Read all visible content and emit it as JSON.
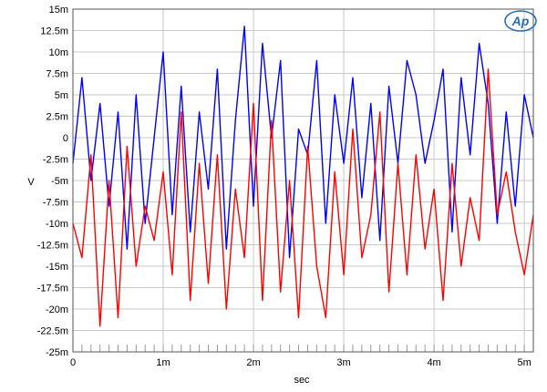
{
  "chart_data": {
    "type": "line",
    "title": "",
    "xlabel": "sec",
    "ylabel": "V",
    "xlim": [
      0,
      0.0051
    ],
    "ylim": [
      -0.025,
      0.015
    ],
    "grid": true,
    "x_ticks": [
      {
        "value": 0,
        "label": "0"
      },
      {
        "value": 0.001,
        "label": "1m"
      },
      {
        "value": 0.002,
        "label": "2m"
      },
      {
        "value": 0.003,
        "label": "3m"
      },
      {
        "value": 0.004,
        "label": "4m"
      },
      {
        "value": 0.005,
        "label": "5m"
      }
    ],
    "y_ticks": [
      {
        "value": 0.015,
        "label": "15m"
      },
      {
        "value": 0.0125,
        "label": "12.5m"
      },
      {
        "value": 0.01,
        "label": "10m"
      },
      {
        "value": 0.0075,
        "label": "7.5m"
      },
      {
        "value": 0.005,
        "label": "5m"
      },
      {
        "value": 0.0025,
        "label": "2.5m"
      },
      {
        "value": 0,
        "label": "0"
      },
      {
        "value": -0.0025,
        "label": "-2.5m"
      },
      {
        "value": -0.005,
        "label": "-5m"
      },
      {
        "value": -0.0075,
        "label": "-7.5m"
      },
      {
        "value": -0.01,
        "label": "-10m"
      },
      {
        "value": -0.0125,
        "label": "-12.5m"
      },
      {
        "value": -0.015,
        "label": "-15m"
      },
      {
        "value": -0.0175,
        "label": "-17.5m"
      },
      {
        "value": -0.02,
        "label": "-20m"
      },
      {
        "value": -0.0225,
        "label": "-22.5m"
      },
      {
        "value": -0.025,
        "label": "-25m"
      }
    ],
    "series": [
      {
        "color": "#0000ff",
        "x": [
          0,
          0.0001,
          0.0002,
          0.0003,
          0.0004,
          0.0005,
          0.0006,
          0.0007,
          0.0008,
          0.0009,
          0.001,
          0.0011,
          0.0012,
          0.0013,
          0.0014,
          0.0015,
          0.0016,
          0.0017,
          0.0018,
          0.0019,
          0.002,
          0.0021,
          0.0022,
          0.0023,
          0.0024,
          0.0025,
          0.0026,
          0.0027,
          0.0028,
          0.0029,
          0.003,
          0.0031,
          0.0032,
          0.0033,
          0.0034,
          0.0035,
          0.0036,
          0.0037,
          0.0038,
          0.0039,
          0.004,
          0.0041,
          0.0042,
          0.0043,
          0.0044,
          0.0045,
          0.0046,
          0.0047,
          0.0048,
          0.0049,
          0.005,
          0.0051
        ],
        "y": [
          -0.003,
          0.007,
          -0.005,
          0.004,
          -0.008,
          0.003,
          -0.013,
          0.005,
          -0.01,
          0.0,
          0.01,
          -0.009,
          0.006,
          -0.011,
          0.003,
          -0.006,
          0.008,
          -0.013,
          0.002,
          0.013,
          -0.008,
          0.011,
          0.0,
          0.009,
          -0.014,
          0.001,
          -0.002,
          0.009,
          -0.01,
          0.005,
          -0.003,
          0.007,
          -0.007,
          0.004,
          -0.012,
          0.006,
          -0.003,
          0.009,
          0.005,
          -0.003,
          0.002,
          0.008,
          -0.011,
          0.007,
          -0.002,
          0.011,
          0.004,
          -0.01,
          0.003,
          -0.008,
          0.005,
          0.0
        ]
      },
      {
        "color": "#ff0000",
        "x": [
          0,
          0.0001,
          0.0002,
          0.0003,
          0.0004,
          0.0005,
          0.0006,
          0.0007,
          0.0008,
          0.0009,
          0.001,
          0.0011,
          0.0012,
          0.0013,
          0.0014,
          0.0015,
          0.0016,
          0.0017,
          0.0018,
          0.0019,
          0.002,
          0.0021,
          0.0022,
          0.0023,
          0.0024,
          0.0025,
          0.0026,
          0.0027,
          0.0028,
          0.0029,
          0.003,
          0.0031,
          0.0032,
          0.0033,
          0.0034,
          0.0035,
          0.0036,
          0.0037,
          0.0038,
          0.0039,
          0.004,
          0.0041,
          0.0042,
          0.0043,
          0.0044,
          0.0045,
          0.0046,
          0.0047,
          0.0048,
          0.0049,
          0.005,
          0.0051
        ],
        "y": [
          -0.01,
          -0.014,
          -0.002,
          -0.022,
          -0.005,
          -0.021,
          -0.001,
          -0.015,
          -0.008,
          -0.012,
          -0.004,
          -0.016,
          0.003,
          -0.019,
          -0.003,
          -0.017,
          -0.002,
          -0.02,
          -0.006,
          -0.014,
          0.004,
          -0.019,
          0.002,
          -0.018,
          -0.005,
          -0.021,
          -0.001,
          -0.015,
          -0.021,
          -0.004,
          -0.016,
          0.001,
          -0.014,
          -0.009,
          0.003,
          -0.018,
          -0.003,
          -0.016,
          -0.002,
          -0.013,
          -0.006,
          -0.019,
          -0.003,
          -0.015,
          -0.007,
          -0.012,
          0.008,
          -0.009,
          -0.004,
          -0.011,
          -0.016,
          -0.009
        ]
      }
    ]
  }
}
